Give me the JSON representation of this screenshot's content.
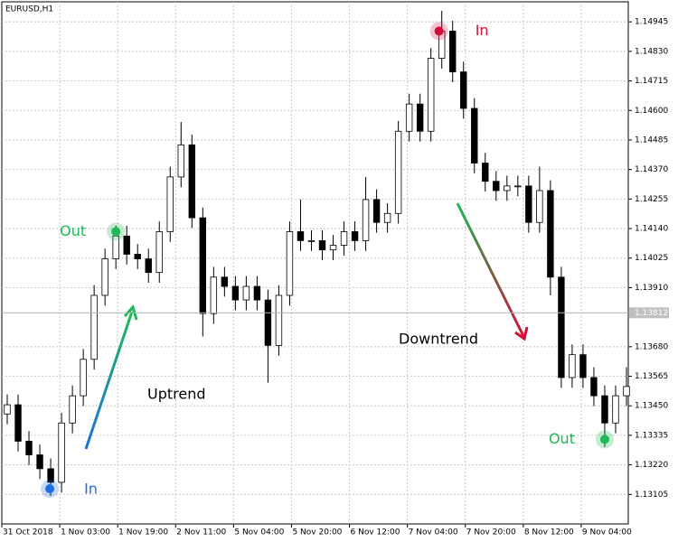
{
  "chart_data": {
    "type": "candlestick",
    "title": "EURUSD,H1",
    "xlim": [
      0,
      173
    ],
    "xticks": [
      {
        "value": 0,
        "label": "31 Oct 2018"
      },
      {
        "value": 16,
        "label": "1 Nov 03:00"
      },
      {
        "value": 32,
        "label": "1 Nov 19:00"
      },
      {
        "value": 48,
        "label": "2 Nov 11:00"
      },
      {
        "value": 64,
        "label": "5 Nov 04:00"
      },
      {
        "value": 80,
        "label": "5 Nov 20:00"
      },
      {
        "value": 96,
        "label": "6 Nov 12:00"
      },
      {
        "value": 112,
        "label": "7 Nov 04:00"
      },
      {
        "value": 128,
        "label": "7 Nov 20:00"
      },
      {
        "value": 144,
        "label": "8 Nov 12:00"
      },
      {
        "value": 160,
        "label": "9 Nov 04:00"
      }
    ],
    "ylim": [
      1.1299,
      1.15023
    ],
    "yticks": [
      1.14945,
      {
        "value": 1.1483,
        "label": "1.14830"
      },
      1.14715,
      {
        "value": 1.146,
        "label": "1.14600"
      },
      1.14485,
      {
        "value": 1.1437,
        "label": "1.14370"
      },
      1.14255,
      {
        "value": 1.1414,
        "label": "1.14140"
      },
      1.14025,
      {
        "value": 1.1391,
        "label": "1.13910"
      },
      {
        "value": 1.1368,
        "label": "1.13680"
      },
      1.13565,
      {
        "value": 1.1345,
        "label": "1.13450"
      },
      1.13335,
      {
        "value": 1.1322,
        "label": "1.13220"
      },
      1.13105
    ],
    "current_price": 1.13812,
    "grid": true,
    "up_color": "#ffffff",
    "down_color": "#000000",
    "x": [
      1.5,
      4.5,
      7.5,
      10.5,
      13.5,
      16.5,
      19.5,
      22.5,
      25.5,
      28.5,
      31.5,
      34.5,
      37.5,
      40.5,
      43.5,
      46.5,
      49.5,
      52.5,
      55.5,
      58.5,
      61.5,
      64.5,
      67.5,
      70.5,
      73.5,
      76.5,
      79.5,
      82.5,
      85.5,
      88.5,
      91.5,
      94.5,
      97.5,
      100.5,
      103.5,
      106.5,
      109.5,
      112.5,
      115.5,
      118.5,
      121.5,
      124.5,
      127.5,
      130.5,
      133.5,
      136.5,
      139.5,
      142.5,
      145.5,
      148.5,
      151.5,
      154.5,
      157.5,
      160.5,
      163.5,
      166.5,
      169.5,
      172.5
    ],
    "candles": [
      [
        1.13418,
        1.13494,
        1.13378,
        1.13454
      ],
      [
        1.13454,
        1.13494,
        1.13272,
        1.13312
      ],
      [
        1.13312,
        1.13352,
        1.13219,
        1.13259
      ],
      [
        1.13259,
        1.13299,
        1.13165,
        1.13205
      ],
      [
        1.13205,
        1.13245,
        1.13099,
        1.13152
      ],
      [
        1.13152,
        1.13423,
        1.13112,
        1.13383
      ],
      [
        1.13383,
        1.13529,
        1.13343,
        1.13489
      ],
      [
        1.13489,
        1.13671,
        1.13449,
        1.13631
      ],
      [
        1.13631,
        1.1392,
        1.13591,
        1.1388
      ],
      [
        1.1388,
        1.14062,
        1.1384,
        1.14022
      ],
      [
        1.14022,
        1.14151,
        1.13982,
        1.14111
      ],
      [
        1.14111,
        1.14151,
        1.14,
        1.1404
      ],
      [
        1.1404,
        1.1408,
        1.13982,
        1.14022
      ],
      [
        1.14022,
        1.14062,
        1.13929,
        1.13969
      ],
      [
        1.13969,
        1.14168,
        1.13929,
        1.14128
      ],
      [
        1.14128,
        1.14381,
        1.14088,
        1.14341
      ],
      [
        1.14341,
        1.14555,
        1.14301,
        1.14466
      ],
      [
        1.14466,
        1.14506,
        1.14142,
        1.14182
      ],
      [
        1.14182,
        1.14222,
        1.1372,
        1.13809
      ],
      [
        1.13809,
        1.13991,
        1.13769,
        1.13951
      ],
      [
        1.13951,
        1.13991,
        1.13875,
        1.13915
      ],
      [
        1.13915,
        1.13955,
        1.13822,
        1.13862
      ],
      [
        1.13862,
        1.13955,
        1.13822,
        1.13915
      ],
      [
        1.13915,
        1.13955,
        1.13822,
        1.13862
      ],
      [
        1.13862,
        1.13902,
        1.1354,
        1.13685
      ],
      [
        1.13685,
        1.1392,
        1.13645,
        1.1388
      ],
      [
        1.1388,
        1.14168,
        1.1384,
        1.14128
      ],
      [
        1.14128,
        1.14253,
        1.14053,
        1.14093
      ],
      [
        1.14093,
        1.14133,
        1.14053,
        1.14093
      ],
      [
        1.14093,
        1.14133,
        1.14017,
        1.14057
      ],
      [
        1.14057,
        1.14115,
        1.14017,
        1.14075
      ],
      [
        1.14075,
        1.14168,
        1.14035,
        1.14128
      ],
      [
        1.14128,
        1.14168,
        1.14053,
        1.14093
      ],
      [
        1.14093,
        1.14341,
        1.14053,
        1.14253
      ],
      [
        1.14253,
        1.14293,
        1.14124,
        1.14164
      ],
      [
        1.14164,
        1.14239,
        1.14124,
        1.14199
      ],
      [
        1.14199,
        1.14559,
        1.14159,
        1.14519
      ],
      [
        1.14519,
        1.14665,
        1.14479,
        1.14625
      ],
      [
        1.14625,
        1.14665,
        1.14479,
        1.14519
      ],
      [
        1.14519,
        1.14843,
        1.14479,
        1.14803
      ],
      [
        1.14803,
        1.14988,
        1.14763,
        1.14909
      ],
      [
        1.14909,
        1.14949,
        1.1471,
        1.1475
      ],
      [
        1.1475,
        1.1479,
        1.14568,
        1.14608
      ],
      [
        1.14608,
        1.14648,
        1.14355,
        1.14395
      ],
      [
        1.14395,
        1.14435,
        1.14284,
        1.14324
      ],
      [
        1.14324,
        1.14364,
        1.14248,
        1.14288
      ],
      [
        1.14288,
        1.14346,
        1.14248,
        1.14306
      ],
      [
        1.14306,
        1.14346,
        1.14266,
        1.14306
      ],
      [
        1.14306,
        1.14346,
        1.14124,
        1.14164
      ],
      [
        1.14164,
        1.14381,
        1.14124,
        1.14288
      ],
      [
        1.14288,
        1.14328,
        1.1388,
        1.13951
      ],
      [
        1.13951,
        1.13991,
        1.1352,
        1.1356
      ],
      [
        1.1356,
        1.13689,
        1.1352,
        1.13649
      ],
      [
        1.13649,
        1.13689,
        1.1352,
        1.1356
      ],
      [
        1.1356,
        1.136,
        1.13449,
        1.13489
      ],
      [
        1.13489,
        1.13529,
        1.1329,
        1.13383
      ],
      [
        1.13383,
        1.13529,
        1.13343,
        1.13489
      ],
      [
        1.13489,
        1.136,
        1.13449,
        1.13525
      ]
    ],
    "signals": [
      {
        "label": "In",
        "x": 13.25,
        "price": 1.13127,
        "color": "#1e6fe0"
      },
      {
        "label": "Out",
        "x": 31.5,
        "price": 1.14128,
        "color": "#1db954"
      },
      {
        "label": "In",
        "x": 120.75,
        "price": 1.14909,
        "color": "#d0103a"
      },
      {
        "label": "Out",
        "x": 166.5,
        "price": 1.13319,
        "color": "#1db954"
      }
    ],
    "annotations": [
      {
        "text": "Uptrend"
      },
      {
        "text": "Downtrend"
      }
    ]
  }
}
